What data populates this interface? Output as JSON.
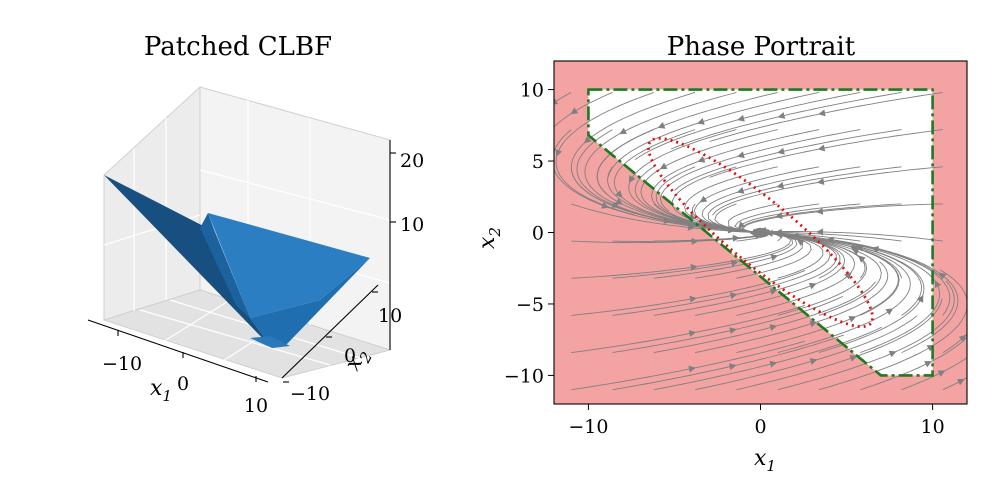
{
  "chart_data": [
    {
      "type": "surface3d",
      "title": "Patched CLBF",
      "xlabel": "x",
      "xlabel_sub": "1",
      "ylabel": "x",
      "ylabel_sub": "2",
      "x_ticks": [
        "−10",
        "0",
        "10"
      ],
      "y_ticks": [
        "10",
        "0",
        "−10"
      ],
      "z_ticks": [
        "20",
        "10"
      ],
      "xlim": [
        -12,
        12
      ],
      "ylim": [
        -12,
        12
      ],
      "zlim": [
        0,
        22
      ],
      "surface_color": "#1f6fb0"
    },
    {
      "type": "streamplot",
      "title": "Phase Portrait",
      "xlabel": "x",
      "xlabel_sub": "1",
      "ylabel": "x",
      "ylabel_sub": "2",
      "xlim": [
        -12,
        12
      ],
      "ylim": [
        -12,
        12
      ],
      "x_ticks": [
        -10,
        0,
        10
      ],
      "y_ticks": [
        -10,
        -5,
        0,
        5,
        10
      ],
      "x_tick_labels": [
        "−10",
        "0",
        "10"
      ],
      "y_tick_labels": [
        "−10",
        "−5",
        "0",
        "5",
        "10"
      ],
      "unsafe_color": "#f4a3a3",
      "safe_boundary": {
        "color": "#1e7a1e",
        "vertices": [
          [
            -10,
            10
          ],
          [
            10,
            10
          ],
          [
            10,
            -10
          ],
          [
            7,
            -10
          ],
          [
            -10,
            6.8
          ]
        ]
      },
      "ellipse": {
        "color": "#e01010",
        "center": [
          0,
          0
        ],
        "semi_major": 8.3,
        "semi_minor": 1.85,
        "angle_deg": -39.5
      },
      "stream_color": "#808080"
    }
  ]
}
